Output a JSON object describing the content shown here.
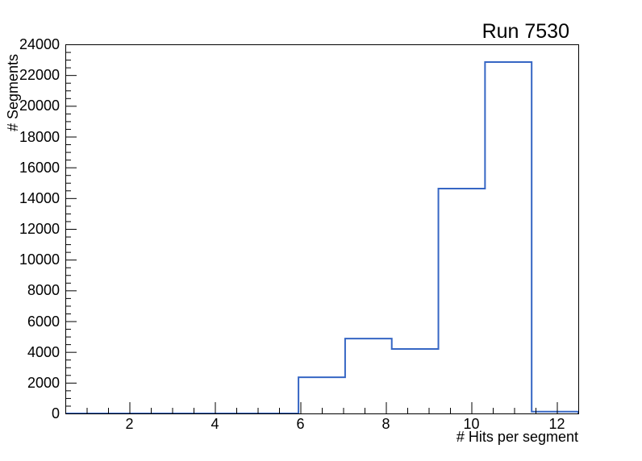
{
  "page": {
    "background": "#ffffff",
    "text_color": "#000000"
  },
  "chart_data": {
    "type": "histogram-step",
    "title": "Run 7530",
    "xlabel": "# Hits per segment",
    "ylabel": "# Segments",
    "xlim": [
      0.5,
      12.5
    ],
    "ylim": [
      0,
      24000
    ],
    "bin_edges": [
      0.5,
      1.5909,
      2.6818,
      3.7727,
      4.8636,
      5.9545,
      7.0455,
      8.1364,
      9.2273,
      10.3182,
      11.4091,
      12.5
    ],
    "values": [
      0,
      0,
      0,
      0,
      0,
      2350,
      4870,
      4190,
      14620,
      22850,
      120
    ],
    "x_major_ticks": [
      2,
      4,
      6,
      8,
      10,
      12
    ],
    "x_minor_step": 0.5,
    "y_major_ticks": [
      0,
      2000,
      4000,
      6000,
      8000,
      10000,
      12000,
      14000,
      16000,
      18000,
      20000,
      22000,
      24000
    ],
    "y_minor_step": 500,
    "line_color": "#3666c4",
    "axis_color": "#000000",
    "grid": false,
    "legend": null
  }
}
